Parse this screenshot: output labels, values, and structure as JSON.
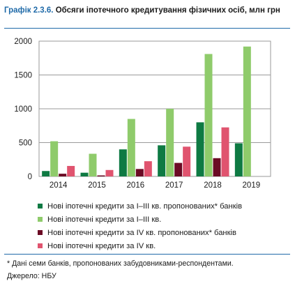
{
  "figure": {
    "label": "Графік 2.3.6.",
    "title": "Обсяги іпотечного кредитування фізичних осіб, млн грн"
  },
  "footnote": "* Дані семи банків, пропонованих забудовниками-респондентами.",
  "source": "Джерело: НБУ",
  "chart_data": {
    "type": "bar",
    "categories": [
      "2014",
      "2015",
      "2016",
      "2017",
      "2018",
      "2019"
    ],
    "series": [
      {
        "name": "Нові іпотечні кредити за I–III кв. пропонованих* банків",
        "color": "#0e7a43",
        "values": [
          80,
          55,
          400,
          460,
          800,
          490
        ]
      },
      {
        "name": "Нові іпотечні кредити за I–III кв.",
        "color": "#8fcb6b",
        "values": [
          520,
          335,
          850,
          1000,
          1810,
          1920
        ]
      },
      {
        "name": "Нові іпотечні кредити за IV кв. пропонованих* банків",
        "color": "#6b0a24",
        "values": [
          40,
          15,
          110,
          200,
          270,
          null
        ]
      },
      {
        "name": "Нові іпотечні кредити за IV кв.",
        "color": "#e0546f",
        "values": [
          155,
          95,
          225,
          440,
          725,
          null
        ]
      }
    ],
    "yticks": [
      "0",
      "500",
      "1000",
      "1500",
      "2000"
    ],
    "ylim": [
      0,
      2000
    ],
    "grid": true,
    "legend_position": "bottom"
  }
}
